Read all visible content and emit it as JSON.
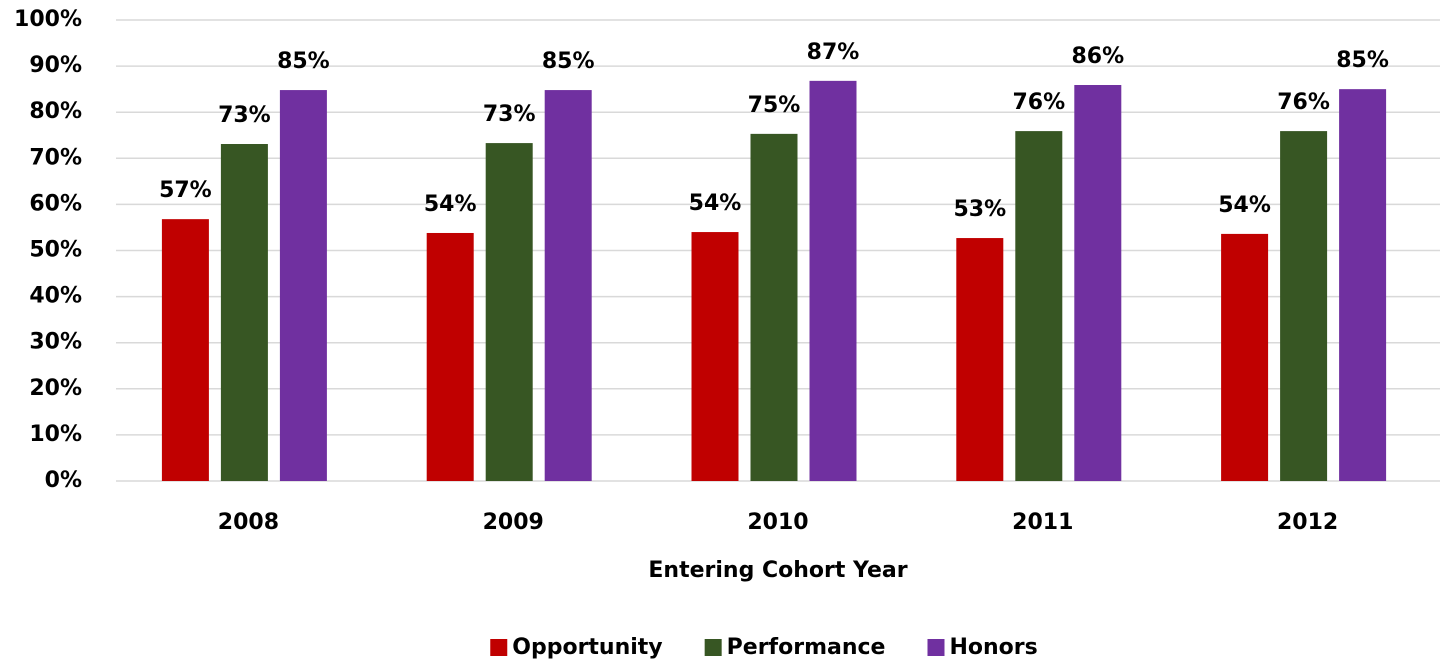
{
  "chart_data": {
    "type": "bar",
    "x_label": "Entering Cohort Year",
    "categories": [
      "2008",
      "2009",
      "2010",
      "2011",
      "2012"
    ],
    "series": [
      {
        "name": "Opportunity",
        "color": "#c00000",
        "values": [
          56.8,
          53.8,
          54.0,
          52.7,
          53.6
        ],
        "value_labels": [
          "57%",
          "54%",
          "54%",
          "53%",
          "54%"
        ]
      },
      {
        "name": "Performance",
        "color": "#375623",
        "values": [
          73.1,
          73.3,
          75.3,
          75.9,
          75.9
        ],
        "value_labels": [
          "73%",
          "73%",
          "75%",
          "76%",
          "76%"
        ]
      },
      {
        "name": "Honors",
        "color": "#7030a0",
        "values": [
          84.8,
          84.8,
          86.8,
          85.9,
          85.0
        ],
        "value_labels": [
          "85%",
          "85%",
          "87%",
          "86%",
          "85%"
        ]
      }
    ],
    "ylim": [
      0,
      100
    ],
    "yticks": [
      {
        "value": 0,
        "label": "0%"
      },
      {
        "value": 10,
        "label": "10%"
      },
      {
        "value": 20,
        "label": "20%"
      },
      {
        "value": 30,
        "label": "30%"
      },
      {
        "value": 40,
        "label": "40%"
      },
      {
        "value": 50,
        "label": "50%"
      },
      {
        "value": 60,
        "label": "60%"
      },
      {
        "value": 70,
        "label": "70%"
      },
      {
        "value": 80,
        "label": "80%"
      },
      {
        "value": 90,
        "label": "90%"
      },
      {
        "value": 100,
        "label": "100%"
      }
    ],
    "grid": true,
    "legend": "bottom"
  }
}
